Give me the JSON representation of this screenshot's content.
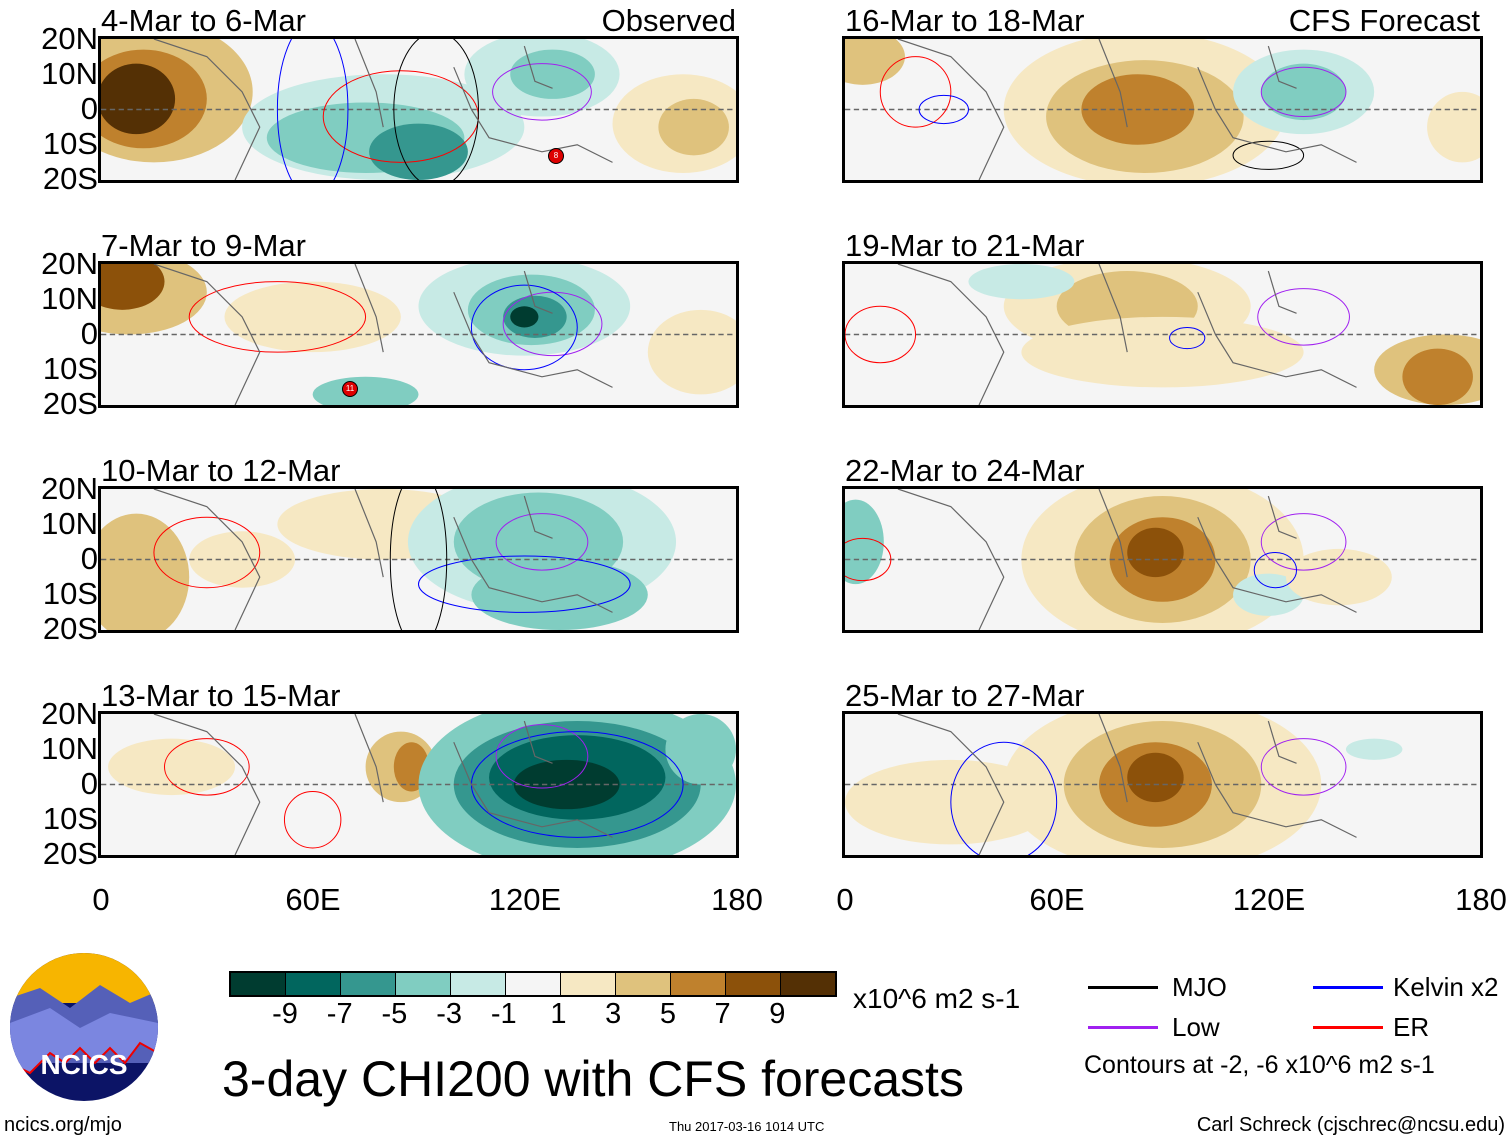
{
  "panels_left": [
    {
      "title": "4-Mar to 6-Mar",
      "label": "Observed"
    },
    {
      "title": "7-Mar to 9-Mar"
    },
    {
      "title": "10-Mar to 12-Mar"
    },
    {
      "title": "13-Mar to 15-Mar"
    }
  ],
  "panels_right": [
    {
      "title": "16-Mar to 18-Mar",
      "label": "CFS Forecast"
    },
    {
      "title": "19-Mar to 21-Mar"
    },
    {
      "title": "22-Mar to 24-Mar"
    },
    {
      "title": "25-Mar to 27-Mar"
    }
  ],
  "y_ticks": [
    "20N",
    "10N",
    "0",
    "10S",
    "20S"
  ],
  "x_ticks": [
    "0",
    "60E",
    "120E",
    "180"
  ],
  "colorbar": {
    "colors": [
      "#003c30",
      "#01665e",
      "#35978f",
      "#80cdc1",
      "#c7eae5",
      "#f5f5f5",
      "#f6e8c3",
      "#dfc27d",
      "#bf812d",
      "#8c510a",
      "#543005"
    ],
    "labels": [
      "-9",
      "-7",
      "-5",
      "-3",
      "-1",
      "1",
      "3",
      "5",
      "7",
      "9"
    ],
    "units": "x10^6 m2 s-1"
  },
  "legend": {
    "items": [
      {
        "label": "MJO",
        "color": "#000000"
      },
      {
        "label": "Kelvin x2",
        "color": "#0000ff"
      },
      {
        "label": "Low",
        "color": "#a020f0"
      },
      {
        "label": "ER",
        "color": "#ff0000"
      }
    ],
    "note": "Contours at -2, -6 x10^6 m2 s-1"
  },
  "logo": {
    "text": "NCICS"
  },
  "title": "3-day CHI200 with CFS forecasts",
  "footer": {
    "url": "ncics.org/mjo",
    "timestamp": "Thu 2017-03-16 1014 UTC",
    "author": "Carl Schreck (cjschrec@ncsu.edu)"
  },
  "tc_markers": [
    {
      "panel": "4-Mar to 6-Mar",
      "label": "8"
    },
    {
      "panel": "7-Mar to 9-Mar",
      "label": "11"
    }
  ]
}
